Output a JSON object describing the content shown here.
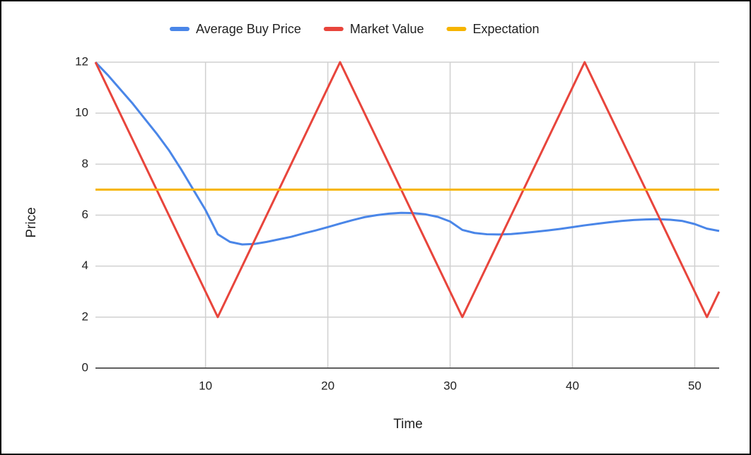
{
  "chart_data": {
    "type": "line",
    "x_label": "Time",
    "y_label": "Price",
    "x": [
      1,
      2,
      3,
      4,
      5,
      6,
      7,
      8,
      9,
      10,
      11,
      12,
      13,
      14,
      15,
      16,
      17,
      18,
      19,
      20,
      21,
      22,
      23,
      24,
      25,
      26,
      27,
      28,
      29,
      30,
      31,
      32,
      33,
      34,
      35,
      36,
      37,
      38,
      39,
      40,
      41,
      42,
      43,
      44,
      45,
      46,
      47,
      48,
      49,
      50,
      51,
      52
    ],
    "series": [
      {
        "name": "Average Buy Price",
        "color": "#4a86e8",
        "values": [
          12,
          11.5,
          10.95,
          10.4,
          9.8,
          9.2,
          8.55,
          7.8,
          7.0,
          6.2,
          5.25,
          4.95,
          4.85,
          4.87,
          4.95,
          5.05,
          5.15,
          5.28,
          5.4,
          5.53,
          5.67,
          5.8,
          5.92,
          6.0,
          6.06,
          6.09,
          6.08,
          6.03,
          5.93,
          5.75,
          5.42,
          5.3,
          5.25,
          5.24,
          5.26,
          5.3,
          5.35,
          5.4,
          5.46,
          5.53,
          5.6,
          5.66,
          5.72,
          5.77,
          5.81,
          5.83,
          5.84,
          5.82,
          5.77,
          5.65,
          5.47,
          5.38
        ]
      },
      {
        "name": "Market Value",
        "color": "#e8453c",
        "values": [
          12,
          11,
          10,
          9,
          8,
          7,
          6,
          5,
          4,
          3,
          2,
          3,
          4,
          5,
          6,
          7,
          8,
          9,
          10,
          11,
          12,
          11,
          10,
          9,
          8,
          7,
          6,
          5,
          4,
          3,
          2,
          3,
          4,
          5,
          6,
          7,
          8,
          9,
          10,
          11,
          12,
          11,
          10,
          9,
          8,
          7,
          6,
          5,
          4,
          3,
          2,
          3
        ]
      },
      {
        "name": "Expectation",
        "color": "#f6b400",
        "values": [
          7,
          7,
          7,
          7,
          7,
          7,
          7,
          7,
          7,
          7,
          7,
          7,
          7,
          7,
          7,
          7,
          7,
          7,
          7,
          7,
          7,
          7,
          7,
          7,
          7,
          7,
          7,
          7,
          7,
          7,
          7,
          7,
          7,
          7,
          7,
          7,
          7,
          7,
          7,
          7,
          7,
          7,
          7,
          7,
          7,
          7,
          7,
          7,
          7,
          7,
          7,
          7
        ]
      }
    ],
    "xlim": [
      1,
      52
    ],
    "xticks": [
      10,
      20,
      30,
      40,
      50
    ],
    "ylim": [
      0,
      12
    ],
    "yticks": [
      0,
      2,
      4,
      6,
      8,
      10,
      12
    ],
    "grid": true,
    "legend": "top"
  }
}
